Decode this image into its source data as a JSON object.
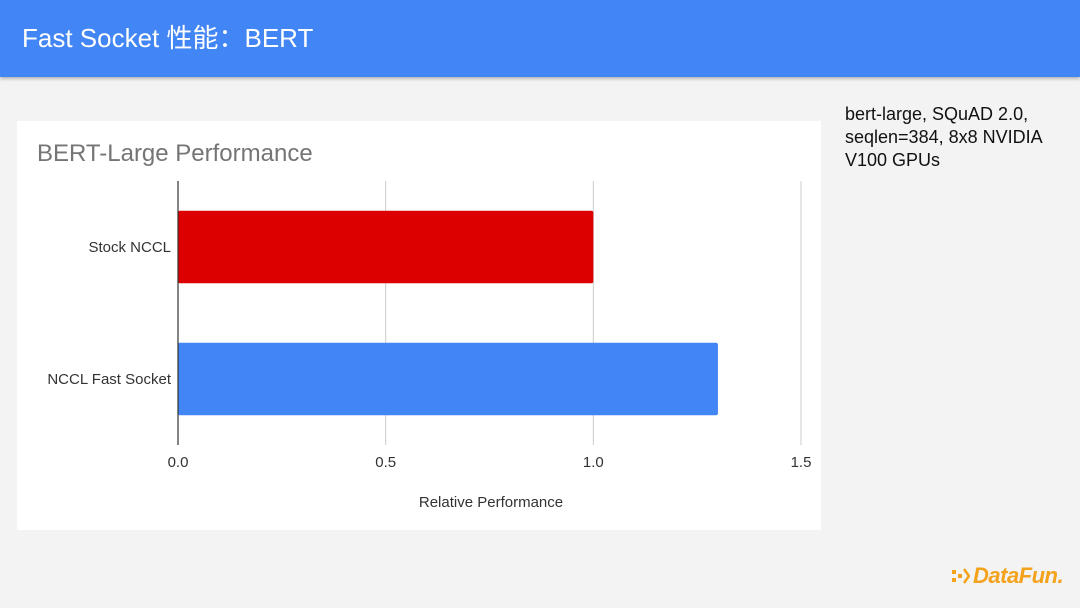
{
  "header": {
    "title": "Fast Socket 性能：BERT"
  },
  "side_note": {
    "text": "bert-large, SQuAD 2.0, seqlen=384, 8x8 NVIDIA V100 GPUs"
  },
  "logo": {
    "text": "DataFun."
  },
  "chart_data": {
    "type": "bar",
    "orientation": "horizontal",
    "title": "BERT-Large Performance",
    "xlabel": "Relative Performance",
    "ylabel": "",
    "categories": [
      "Stock NCCL",
      "NCCL Fast Socket"
    ],
    "values": [
      1.0,
      1.3
    ],
    "colors": [
      "#dc0000",
      "#4285f4"
    ],
    "xlim": [
      0,
      1.5
    ],
    "xticks": [
      "0.0",
      "0.5",
      "1.0",
      "1.5"
    ],
    "grid": true,
    "legend": "none"
  }
}
